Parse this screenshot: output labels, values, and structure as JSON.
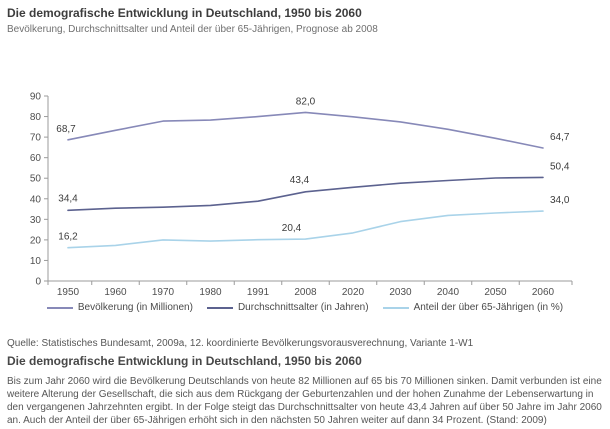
{
  "header": {
    "title": "Die demografische Entwicklung in Deutschland, 1950 bis 2060",
    "subtitle": "Bevölkerung, Durchschnittsalter und Anteil der über 65-Jährigen, Prognose ab 2008"
  },
  "source_note": "Quelle: Statistisches Bundesamt, 2009a, 12. koordinierte Bevölkerungsvorausverechnung, Variante 1-W1",
  "article": {
    "title": "Die demografische Entwicklung in Deutschland, 1950 bis 2060",
    "body": "Bis zum Jahr 2060 wird die Bevölkerung Deutschlands von heute 82 Millionen auf 65 bis 70 Millionen sinken. Damit verbunden ist eine weitere Alterung der Gesellschaft, die sich aus dem Rückgang der Geburtenzahlen und der hohen Zunahme der Lebenserwartung in den vergangenen Jahrzehnten ergibt. In der Folge steigt das Durchschnittsalter von heute 43,4 Jahren auf über 50 Jahre im Jahr 2060 an. Auch der Anteil der über 65-Jährigen erhöht sich in den nächsten 50 Jahren weiter auf dann 34 Prozent. (Stand: 2009)"
  },
  "chart_data": {
    "type": "line",
    "title": "Die demografische Entwicklung in Deutschland, 1950 bis 2060",
    "categories": [
      "1950",
      "1960",
      "1970",
      "1980",
      "1991",
      "2008",
      "2020",
      "2030",
      "2040",
      "2050",
      "2060"
    ],
    "series": [
      {
        "name": "Bevölkerung (in Millionen)",
        "color": "#8789b8",
        "values": [
          68.7,
          73.3,
          77.8,
          78.3,
          80.0,
          82.0,
          79.9,
          77.4,
          73.8,
          69.4,
          64.7
        ],
        "point_labels": [
          {
            "i": 0,
            "text": "68,7",
            "dx": -2,
            "dy": -8,
            "anchor": "middle"
          },
          {
            "i": 5,
            "text": "82,0",
            "dx": 0,
            "dy": -8,
            "anchor": "middle"
          },
          {
            "i": 10,
            "text": "64,7",
            "dx": 7,
            "dy": -8,
            "anchor": "start"
          }
        ]
      },
      {
        "name": "Durchschnittsalter (in Jahren)",
        "color": "#5c628f",
        "values": [
          34.4,
          35.4,
          35.9,
          36.8,
          38.8,
          43.4,
          45.6,
          47.6,
          48.9,
          50.1,
          50.4
        ],
        "point_labels": [
          {
            "i": 0,
            "text": "34,4",
            "dx": 0,
            "dy": -9,
            "anchor": "middle"
          },
          {
            "i": 5,
            "text": "43,4",
            "dx": -6,
            "dy": -9,
            "anchor": "middle"
          },
          {
            "i": 10,
            "text": "50,4",
            "dx": 7,
            "dy": -8,
            "anchor": "start"
          }
        ]
      },
      {
        "name": "Anteil der über 65-Jährigen (in %)",
        "color": "#a9d3e9",
        "values": [
          16.2,
          17.3,
          20.0,
          19.4,
          20.1,
          20.4,
          23.4,
          28.9,
          31.9,
          33.1,
          34.0
        ],
        "point_labels": [
          {
            "i": 0,
            "text": "16,2",
            "dx": 0,
            "dy": -8,
            "anchor": "middle"
          },
          {
            "i": 5,
            "text": "20,4",
            "dx": -14,
            "dy": -8,
            "anchor": "middle"
          },
          {
            "i": 10,
            "text": "34,0",
            "dx": 7,
            "dy": -8,
            "anchor": "start"
          }
        ]
      }
    ],
    "ylim": [
      0,
      90
    ],
    "yticks": [
      0,
      10,
      20,
      30,
      40,
      50,
      60,
      70,
      80,
      90
    ],
    "grid": false,
    "legend_position": "bottom",
    "axis_color": "#9b9b9b",
    "tick_label_color": "#4f4f4f",
    "point_label_color": "#3c3c3c"
  }
}
